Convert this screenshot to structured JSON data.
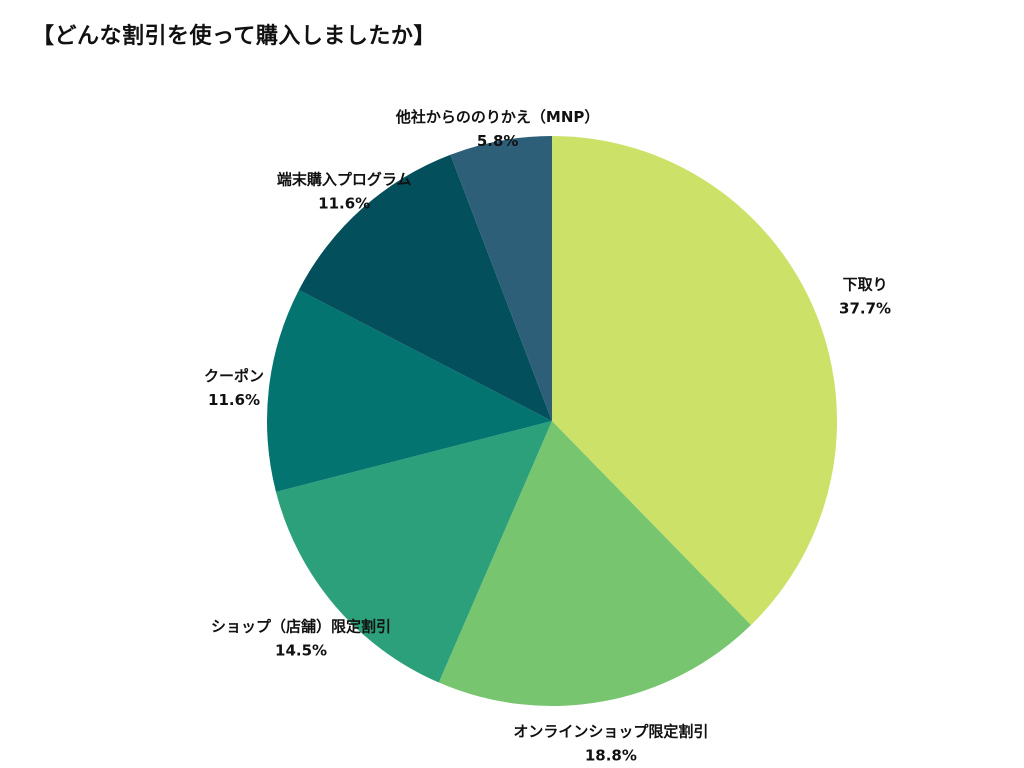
{
  "chart_data": {
    "type": "pie",
    "title": "【どんな割引を使って購入しましたか】",
    "slices": [
      {
        "label": "下取り",
        "value": 37.7,
        "value_text": "37.7%",
        "color": "#cbe167"
      },
      {
        "label": "オンラインショップ限定割引",
        "value": 18.8,
        "value_text": "18.8%",
        "color": "#78c56f"
      },
      {
        "label": "ショップ（店舗）限定割引",
        "value": 14.5,
        "value_text": "14.5%",
        "color": "#2ca07a"
      },
      {
        "label": "クーポン",
        "value": 11.6,
        "value_text": "11.6%",
        "color": "#037470"
      },
      {
        "label": "端末購入プログラム",
        "value": 11.6,
        "value_text": "11.6%",
        "color": "#034f5c"
      },
      {
        "label": "他社からののりかえ（MNP）",
        "value": 5.8,
        "value_text": "5.8%",
        "color": "#2d5f79"
      }
    ],
    "start_angle": "12 o'clock",
    "direction": "clockwise",
    "legend": "none"
  }
}
